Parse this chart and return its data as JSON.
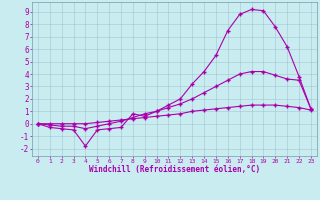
{
  "title": "",
  "xlabel": "Windchill (Refroidissement éolien,°C)",
  "ylabel": "",
  "bg_color": "#c8ecf0",
  "line_color": "#aa00aa",
  "marker_color": "#aa00aa",
  "grid_color": "#9bbccc",
  "x_ticks": [
    0,
    1,
    2,
    3,
    4,
    5,
    6,
    7,
    8,
    9,
    10,
    11,
    12,
    13,
    14,
    15,
    16,
    17,
    18,
    19,
    20,
    21,
    22,
    23
  ],
  "y_ticks": [
    -2,
    -1,
    0,
    1,
    2,
    3,
    4,
    5,
    6,
    7,
    8,
    9
  ],
  "xlim": [
    -0.5,
    23.5
  ],
  "ylim": [
    -2.6,
    9.8
  ],
  "curve1_x": [
    0,
    1,
    2,
    3,
    4,
    5,
    6,
    7,
    8,
    9,
    10,
    11,
    12,
    13,
    14,
    15,
    16,
    17,
    18,
    19,
    20,
    21,
    22,
    23
  ],
  "curve1_y": [
    0.0,
    -0.3,
    -0.4,
    -0.5,
    -1.8,
    -0.5,
    -0.4,
    -0.3,
    0.8,
    0.6,
    1.0,
    1.5,
    2.0,
    3.2,
    4.2,
    5.5,
    7.5,
    8.8,
    9.2,
    9.1,
    7.8,
    6.2,
    3.8,
    1.2
  ],
  "curve2_x": [
    0,
    1,
    2,
    3,
    4,
    5,
    6,
    7,
    8,
    9,
    10,
    11,
    12,
    13,
    14,
    15,
    16,
    17,
    18,
    19,
    20,
    21,
    22,
    23
  ],
  "curve2_y": [
    0.0,
    -0.1,
    -0.2,
    -0.2,
    -0.4,
    -0.2,
    0.0,
    0.2,
    0.5,
    0.8,
    1.0,
    1.3,
    1.6,
    2.0,
    2.5,
    3.0,
    3.5,
    4.0,
    4.2,
    4.2,
    3.9,
    3.6,
    3.5,
    1.2
  ],
  "curve3_x": [
    0,
    1,
    2,
    3,
    4,
    5,
    6,
    7,
    8,
    9,
    10,
    11,
    12,
    13,
    14,
    15,
    16,
    17,
    18,
    19,
    20,
    21,
    22,
    23
  ],
  "curve3_y": [
    0.0,
    0.0,
    0.0,
    0.0,
    0.0,
    0.1,
    0.2,
    0.3,
    0.4,
    0.5,
    0.6,
    0.7,
    0.8,
    1.0,
    1.1,
    1.2,
    1.3,
    1.4,
    1.5,
    1.5,
    1.5,
    1.4,
    1.3,
    1.1
  ]
}
